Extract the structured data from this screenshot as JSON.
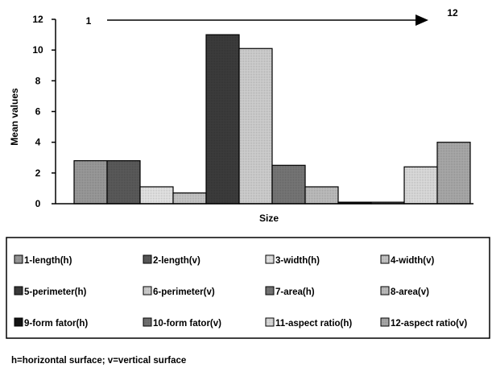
{
  "chart_data": {
    "type": "bar",
    "title": "",
    "xlabel": "Size",
    "ylabel": "Mean values",
    "ylim": [
      0,
      12
    ],
    "yticks": [
      0,
      2,
      4,
      6,
      8,
      10,
      12
    ],
    "grid": false,
    "legend_position": "bottom",
    "arrow": {
      "start_label": "1",
      "end_label": "12"
    },
    "categories": [
      "1-length(h)",
      "2-length(v)",
      "3-width(h)",
      "4-width(v)",
      "5-perimeter(h)",
      "6-perimeter(v)",
      "7-area(h)",
      "8-area(v)",
      "9-form fator(h)",
      "10-form fator(v)",
      "11-aspect ratio(h)",
      "12-aspect ratio(v)"
    ],
    "values": [
      2.8,
      2.8,
      1.1,
      0.7,
      11.0,
      10.1,
      2.5,
      1.1,
      0.1,
      0.1,
      2.4,
      4.0
    ],
    "colors": [
      "#9a9a9a",
      "#5a5a5a",
      "#e4e4e4",
      "#c6c6c6",
      "#3c3c3c",
      "#cfcfcf",
      "#767676",
      "#bdbdbd",
      "#141414",
      "#727272",
      "#dcdcdc",
      "#a9a9a9"
    ],
    "footnote": "h=horizontal surface; v=vertical surface"
  }
}
